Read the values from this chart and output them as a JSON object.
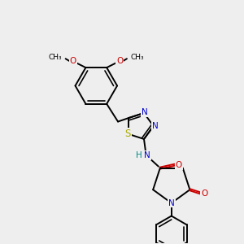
{
  "bg_color": "#eeeeee",
  "bond_color": "#000000",
  "atom_colors": {
    "N": "#0000cc",
    "O": "#cc0000",
    "S": "#aaaa00",
    "H": "#008888",
    "C": "#000000"
  },
  "figsize": [
    3.0,
    3.0
  ],
  "dpi": 100,
  "lw": 1.4,
  "fs": 7.5
}
